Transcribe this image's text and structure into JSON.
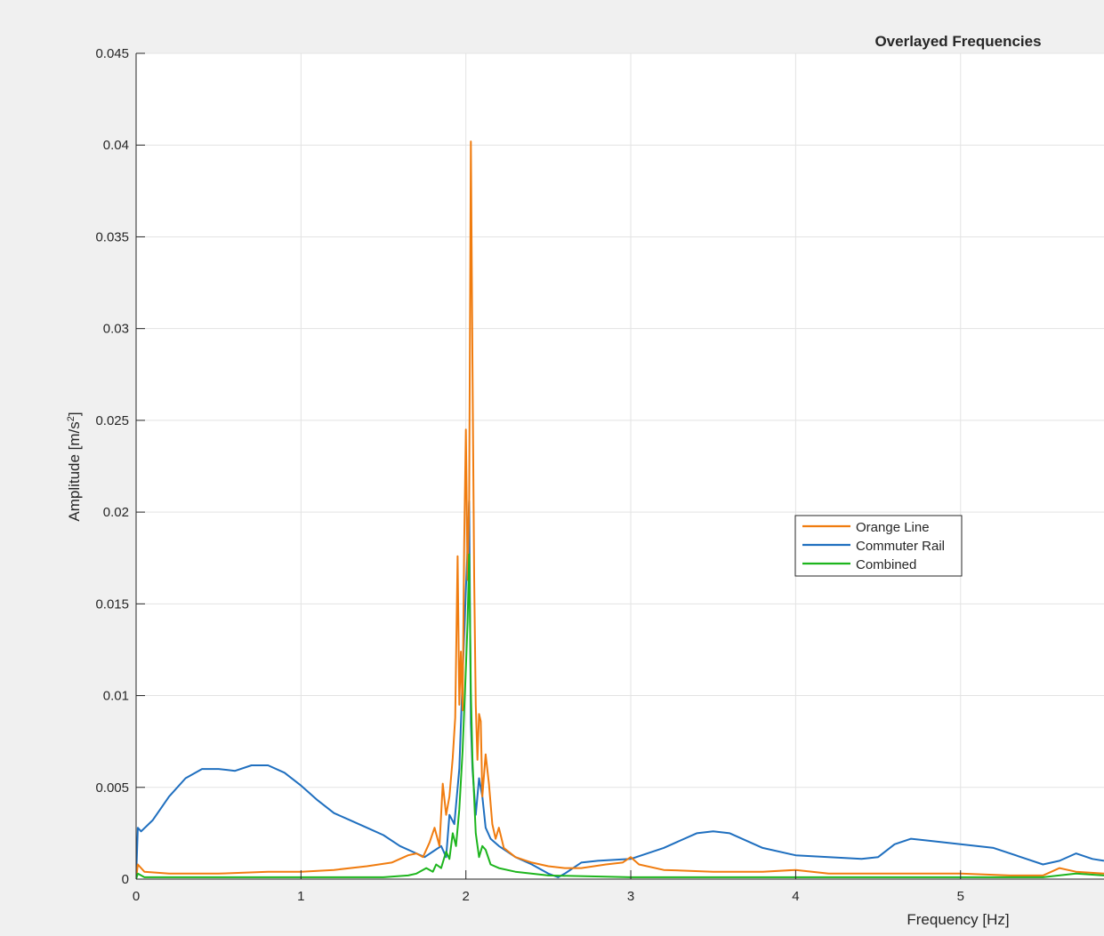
{
  "chart_data": {
    "type": "line",
    "title": "Overlayed Frequencies",
    "xlabel": "Frequency [Hz]",
    "ylabel": "Amplitude [m/s",
    "ylabel_superscript": "2",
    "ylabel_suffix": "]",
    "xlim": [
      0,
      5.87
    ],
    "ylim": [
      0,
      0.045
    ],
    "x_ticks": [
      0,
      1,
      2,
      3,
      4,
      5
    ],
    "x_tick_labels": [
      "0",
      "1",
      "2",
      "3",
      "4",
      "5"
    ],
    "y_ticks": [
      0,
      0.005,
      0.01,
      0.015,
      0.02,
      0.025,
      0.03,
      0.035,
      0.04,
      0.045
    ],
    "y_tick_labels": [
      "0",
      "0.005",
      "0.01",
      "0.015",
      "0.02",
      "0.025",
      "0.03",
      "0.035",
      "0.04",
      "0.045"
    ],
    "grid": true,
    "legend": {
      "placement": "center-right"
    },
    "series": [
      {
        "name": "Orange Line",
        "color": "#f07c0f",
        "points": [
          [
            0,
            0
          ],
          [
            0.01,
            0.0008
          ],
          [
            0.05,
            0.0004
          ],
          [
            0.2,
            0.0003
          ],
          [
            0.5,
            0.0003
          ],
          [
            0.8,
            0.0004
          ],
          [
            1.0,
            0.0004
          ],
          [
            1.2,
            0.0005
          ],
          [
            1.4,
            0.0007
          ],
          [
            1.55,
            0.0009
          ],
          [
            1.65,
            0.0013
          ],
          [
            1.7,
            0.0014
          ],
          [
            1.74,
            0.0012
          ],
          [
            1.78,
            0.002
          ],
          [
            1.81,
            0.0028
          ],
          [
            1.84,
            0.0018
          ],
          [
            1.86,
            0.0052
          ],
          [
            1.88,
            0.0035
          ],
          [
            1.9,
            0.0045
          ],
          [
            1.92,
            0.0066
          ],
          [
            1.935,
            0.0088
          ],
          [
            1.95,
            0.0176
          ],
          [
            1.96,
            0.0095
          ],
          [
            1.97,
            0.0124
          ],
          [
            1.98,
            0.0092
          ],
          [
            1.99,
            0.0183
          ],
          [
            2.0,
            0.0245
          ],
          [
            2.01,
            0.0163
          ],
          [
            2.02,
            0.0208
          ],
          [
            2.03,
            0.0402
          ],
          [
            2.04,
            0.028
          ],
          [
            2.05,
            0.0165
          ],
          [
            2.06,
            0.0095
          ],
          [
            2.07,
            0.0065
          ],
          [
            2.08,
            0.009
          ],
          [
            2.09,
            0.0086
          ],
          [
            2.1,
            0.0045
          ],
          [
            2.12,
            0.0068
          ],
          [
            2.14,
            0.0052
          ],
          [
            2.16,
            0.003
          ],
          [
            2.18,
            0.0022
          ],
          [
            2.2,
            0.0028
          ],
          [
            2.23,
            0.0017
          ],
          [
            2.3,
            0.0012
          ],
          [
            2.4,
            0.0009
          ],
          [
            2.5,
            0.0007
          ],
          [
            2.6,
            0.0006
          ],
          [
            2.7,
            0.0006
          ],
          [
            2.85,
            0.0008
          ],
          [
            2.95,
            0.0009
          ],
          [
            3.0,
            0.0012
          ],
          [
            3.05,
            0.0008
          ],
          [
            3.2,
            0.0005
          ],
          [
            3.5,
            0.0004
          ],
          [
            3.8,
            0.0004
          ],
          [
            4.0,
            0.0005
          ],
          [
            4.2,
            0.0003
          ],
          [
            4.5,
            0.0003
          ],
          [
            4.8,
            0.0003
          ],
          [
            5.0,
            0.0003
          ],
          [
            5.3,
            0.0002
          ],
          [
            5.5,
            0.0002
          ],
          [
            5.6,
            0.0006
          ],
          [
            5.7,
            0.0004
          ],
          [
            5.87,
            0.0003
          ]
        ]
      },
      {
        "name": "Commuter Rail",
        "color": "#1f6fbf",
        "points": [
          [
            0,
            0
          ],
          [
            0.01,
            0.0028
          ],
          [
            0.03,
            0.0026
          ],
          [
            0.1,
            0.0032
          ],
          [
            0.2,
            0.0045
          ],
          [
            0.3,
            0.0055
          ],
          [
            0.4,
            0.006
          ],
          [
            0.5,
            0.006
          ],
          [
            0.6,
            0.0059
          ],
          [
            0.7,
            0.0062
          ],
          [
            0.8,
            0.0062
          ],
          [
            0.9,
            0.0058
          ],
          [
            1.0,
            0.0051
          ],
          [
            1.1,
            0.0043
          ],
          [
            1.2,
            0.0036
          ],
          [
            1.3,
            0.0032
          ],
          [
            1.4,
            0.0028
          ],
          [
            1.5,
            0.0024
          ],
          [
            1.6,
            0.0018
          ],
          [
            1.7,
            0.0014
          ],
          [
            1.75,
            0.0012
          ],
          [
            1.8,
            0.0015
          ],
          [
            1.85,
            0.0018
          ],
          [
            1.88,
            0.0012
          ],
          [
            1.9,
            0.0035
          ],
          [
            1.93,
            0.003
          ],
          [
            1.96,
            0.006
          ],
          [
            1.98,
            0.011
          ],
          [
            2.0,
            0.0158
          ],
          [
            2.01,
            0.018
          ],
          [
            2.02,
            0.0206
          ],
          [
            2.03,
            0.0085
          ],
          [
            2.04,
            0.006
          ],
          [
            2.06,
            0.0035
          ],
          [
            2.08,
            0.0055
          ],
          [
            2.1,
            0.0045
          ],
          [
            2.12,
            0.0028
          ],
          [
            2.15,
            0.0022
          ],
          [
            2.2,
            0.0018
          ],
          [
            2.3,
            0.0012
          ],
          [
            2.4,
            0.0008
          ],
          [
            2.5,
            0.0003
          ],
          [
            2.56,
            0.0001
          ],
          [
            2.6,
            0.0003
          ],
          [
            2.7,
            0.0009
          ],
          [
            2.8,
            0.001
          ],
          [
            3.0,
            0.0011
          ],
          [
            3.2,
            0.0017
          ],
          [
            3.4,
            0.0025
          ],
          [
            3.5,
            0.0026
          ],
          [
            3.6,
            0.0025
          ],
          [
            3.8,
            0.0017
          ],
          [
            4.0,
            0.0013
          ],
          [
            4.2,
            0.0012
          ],
          [
            4.4,
            0.0011
          ],
          [
            4.5,
            0.0012
          ],
          [
            4.6,
            0.0019
          ],
          [
            4.7,
            0.0022
          ],
          [
            4.8,
            0.0021
          ],
          [
            5.0,
            0.0019
          ],
          [
            5.2,
            0.0017
          ],
          [
            5.4,
            0.0011
          ],
          [
            5.5,
            0.0008
          ],
          [
            5.6,
            0.001
          ],
          [
            5.7,
            0.0014
          ],
          [
            5.8,
            0.0011
          ],
          [
            5.87,
            0.001
          ]
        ]
      },
      {
        "name": "Combined",
        "color": "#1db51d",
        "points": [
          [
            0,
            0
          ],
          [
            0.01,
            0.0003
          ],
          [
            0.05,
            0.0001
          ],
          [
            0.5,
            0.0001
          ],
          [
            1.0,
            0.0001
          ],
          [
            1.5,
            0.0001
          ],
          [
            1.65,
            0.0002
          ],
          [
            1.7,
            0.0003
          ],
          [
            1.76,
            0.0006
          ],
          [
            1.8,
            0.0004
          ],
          [
            1.82,
            0.0008
          ],
          [
            1.85,
            0.0006
          ],
          [
            1.88,
            0.0015
          ],
          [
            1.9,
            0.0011
          ],
          [
            1.92,
            0.0025
          ],
          [
            1.94,
            0.0018
          ],
          [
            1.96,
            0.0038
          ],
          [
            1.98,
            0.007
          ],
          [
            2.0,
            0.0115
          ],
          [
            2.01,
            0.014
          ],
          [
            2.02,
            0.0177
          ],
          [
            2.03,
            0.0102
          ],
          [
            2.04,
            0.0065
          ],
          [
            2.06,
            0.0025
          ],
          [
            2.08,
            0.0012
          ],
          [
            2.1,
            0.0018
          ],
          [
            2.12,
            0.0016
          ],
          [
            2.15,
            0.0008
          ],
          [
            2.2,
            0.0006
          ],
          [
            2.3,
            0.0004
          ],
          [
            2.5,
            0.0002
          ],
          [
            3.0,
            0.0001
          ],
          [
            4.0,
            0.0001
          ],
          [
            5.0,
            0.0001
          ],
          [
            5.5,
            0.0001
          ],
          [
            5.7,
            0.0003
          ],
          [
            5.87,
            0.0002
          ]
        ]
      }
    ]
  }
}
